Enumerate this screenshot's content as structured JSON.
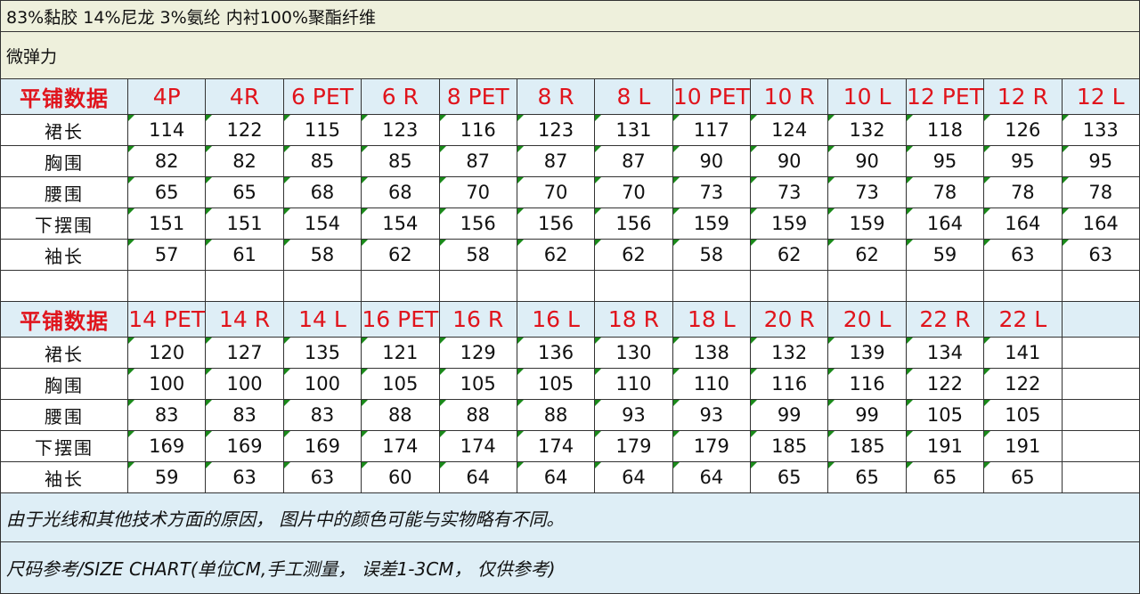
{
  "material": "83%黏胶 14%尼龙 3%氨纶 内衬100%聚酯纤维",
  "stretch": "微弹力",
  "header_label": "平铺数据",
  "row_labels": [
    "裙长",
    "胸围",
    "腰围",
    "下摆围",
    "袖长"
  ],
  "blocks": [
    {
      "sizes": [
        "4P",
        "4R",
        "6 PET",
        "6 R",
        "8 PET",
        "8 R",
        "8 L",
        "10 PET",
        "10 R",
        "10 L",
        "12 PET",
        "12 R",
        "12 L"
      ],
      "rows": [
        [
          "114",
          "122",
          "115",
          "123",
          "116",
          "123",
          "131",
          "117",
          "124",
          "132",
          "118",
          "126",
          "133"
        ],
        [
          "82",
          "82",
          "85",
          "85",
          "87",
          "87",
          "87",
          "90",
          "90",
          "90",
          "95",
          "95",
          "95"
        ],
        [
          "65",
          "65",
          "68",
          "68",
          "70",
          "70",
          "70",
          "73",
          "73",
          "73",
          "78",
          "78",
          "78"
        ],
        [
          "151",
          "151",
          "154",
          "154",
          "156",
          "156",
          "156",
          "159",
          "159",
          "159",
          "164",
          "164",
          "164"
        ],
        [
          "57",
          "61",
          "58",
          "62",
          "58",
          "62",
          "62",
          "58",
          "62",
          "62",
          "59",
          "63",
          "63"
        ]
      ]
    },
    {
      "sizes": [
        "14 PET",
        "14 R",
        "14 L",
        "16 PET",
        "16 R",
        "16 L",
        "18 R",
        "18 L",
        "20 R",
        "20 L",
        "22 R",
        "22 L",
        ""
      ],
      "rows": [
        [
          "120",
          "127",
          "135",
          "121",
          "129",
          "136",
          "130",
          "138",
          "132",
          "139",
          "134",
          "141",
          ""
        ],
        [
          "100",
          "100",
          "100",
          "105",
          "105",
          "105",
          "110",
          "110",
          "116",
          "116",
          "122",
          "122",
          ""
        ],
        [
          "83",
          "83",
          "83",
          "88",
          "88",
          "88",
          "93",
          "93",
          "99",
          "99",
          "105",
          "105",
          ""
        ],
        [
          "169",
          "169",
          "169",
          "174",
          "174",
          "174",
          "179",
          "179",
          "185",
          "185",
          "191",
          "191",
          ""
        ],
        [
          "59",
          "63",
          "63",
          "60",
          "64",
          "64",
          "64",
          "64",
          "65",
          "65",
          "65",
          "65",
          ""
        ]
      ]
    }
  ],
  "note": "由于光线和其他技术方面的原因， 图片中的颜色可能与实物略有不同。",
  "footer": "尺码参考/SIZE CHART(单位CM,手工测量， 误差1-3CM， 仅供参考)",
  "colors": {
    "header_text": "#e0141c",
    "header_bg": "#deeef6",
    "top_bg": "#eef0dc",
    "marker": "#1a8a1a"
  }
}
